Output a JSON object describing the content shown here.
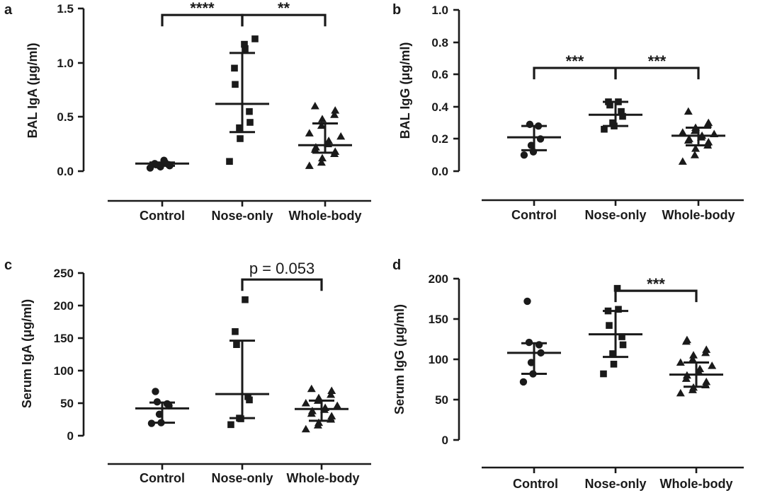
{
  "chart_data": [
    {
      "panel": "a",
      "type": "scatter",
      "ylabel": "BAL IgA (μg/ml)",
      "ylim": [
        0,
        1.5
      ],
      "yticks": [
        0.0,
        0.5,
        1.0,
        1.5
      ],
      "ytick_labels": [
        "0.0",
        "0.5",
        "1.0",
        "1.5"
      ],
      "categories": [
        "Control",
        "Nose-only",
        "Whole-body"
      ],
      "groups": [
        {
          "category": "Control",
          "marker": "circle",
          "values": [
            0.03,
            0.04,
            0.05,
            0.05,
            0.06,
            0.06,
            0.07,
            0.08,
            0.1
          ],
          "mean": 0.07,
          "sd_low": 0.05,
          "sd_high": 0.08
        },
        {
          "category": "Nose-only",
          "marker": "square",
          "values": [
            0.09,
            0.3,
            0.4,
            0.45,
            0.55,
            0.8,
            0.95,
            1.13,
            1.17,
            1.22
          ],
          "mean": 0.62,
          "sd_low": 0.36,
          "sd_high": 1.09
        },
        {
          "category": "Whole-body",
          "marker": "triangle",
          "values": [
            0.05,
            0.08,
            0.12,
            0.16,
            0.18,
            0.2,
            0.22,
            0.25,
            0.28,
            0.32,
            0.35,
            0.42,
            0.48,
            0.52,
            0.56,
            0.6
          ],
          "mean": 0.24,
          "sd_low": 0.17,
          "sd_high": 0.44
        }
      ],
      "comparisons": [
        {
          "from": "Control",
          "to": "Nose-only",
          "label": "****",
          "y": 1.44
        },
        {
          "from": "Nose-only",
          "to": "Whole-body",
          "label": "**",
          "y": 1.44
        }
      ]
    },
    {
      "panel": "b",
      "type": "scatter",
      "ylabel": "BAL IgG (μg/ml)",
      "ylim": [
        0,
        1.0
      ],
      "yticks": [
        0.0,
        0.2,
        0.4,
        0.6,
        0.8,
        1.0
      ],
      "ytick_labels": [
        "0.0",
        "0.2",
        "0.4",
        "0.6",
        "0.8",
        "1.0"
      ],
      "categories": [
        "Control",
        "Nose-only",
        "Whole-body"
      ],
      "groups": [
        {
          "category": "Control",
          "marker": "circle",
          "values": [
            0.1,
            0.12,
            0.16,
            0.2,
            0.28,
            0.29
          ],
          "mean": 0.21,
          "sd_low": 0.13,
          "sd_high": 0.28
        },
        {
          "category": "Nose-only",
          "marker": "square",
          "values": [
            0.26,
            0.28,
            0.3,
            0.34,
            0.37,
            0.41,
            0.43,
            0.43
          ],
          "mean": 0.35,
          "sd_low": 0.28,
          "sd_high": 0.43
        },
        {
          "category": "Whole-body",
          "marker": "triangle",
          "values": [
            0.06,
            0.1,
            0.14,
            0.16,
            0.18,
            0.19,
            0.2,
            0.21,
            0.22,
            0.23,
            0.24,
            0.25,
            0.27,
            0.29,
            0.3,
            0.37
          ],
          "mean": 0.22,
          "sd_low": 0.16,
          "sd_high": 0.27
        }
      ],
      "comparisons": [
        {
          "from": "Control",
          "to": "Nose-only",
          "label": "***",
          "y": 0.64
        },
        {
          "from": "Nose-only",
          "to": "Whole-body",
          "label": "***",
          "y": 0.64
        }
      ]
    },
    {
      "panel": "c",
      "type": "scatter",
      "ylabel": "Serum IgA (μg/ml)",
      "ylim": [
        0,
        250
      ],
      "yticks": [
        0,
        50,
        100,
        150,
        200,
        250
      ],
      "ytick_labels": [
        "0",
        "50",
        "100",
        "150",
        "200",
        "250"
      ],
      "categories": [
        "Control",
        "Nose-only",
        "Whole-body"
      ],
      "groups": [
        {
          "category": "Control",
          "marker": "circle",
          "values": [
            19,
            20,
            33,
            46,
            49,
            52,
            68
          ],
          "mean": 42,
          "sd_low": 20,
          "sd_high": 51
        },
        {
          "category": "Nose-only",
          "marker": "square",
          "values": [
            17,
            26,
            27,
            55,
            60,
            140,
            160,
            209
          ],
          "mean": 64,
          "sd_low": 27,
          "sd_high": 146
        },
        {
          "category": "Whole-body",
          "marker": "triangle",
          "values": [
            10,
            16,
            20,
            25,
            30,
            34,
            38,
            40,
            43,
            46,
            50,
            54,
            58,
            63,
            69,
            72
          ],
          "mean": 41,
          "sd_low": 23,
          "sd_high": 54
        }
      ],
      "comparisons": [
        {
          "from": "Nose-only",
          "to": "Whole-body",
          "label": "p = 0.053",
          "y": 240
        }
      ]
    },
    {
      "panel": "d",
      "type": "scatter",
      "ylabel": "Serum IgG (μg/ml)",
      "ylim": [
        0,
        200
      ],
      "yticks": [
        0,
        50,
        100,
        150,
        200
      ],
      "ytick_labels": [
        "0",
        "50",
        "100",
        "150",
        "200"
      ],
      "categories": [
        "Control",
        "Nose-only",
        "Whole-body"
      ],
      "groups": [
        {
          "category": "Control",
          "marker": "circle",
          "values": [
            72,
            82,
            96,
            108,
            118,
            121,
            172
          ],
          "mean": 108,
          "sd_low": 82,
          "sd_high": 120
        },
        {
          "category": "Nose-only",
          "marker": "square",
          "values": [
            82,
            94,
            107,
            118,
            128,
            142,
            160,
            162,
            188
          ],
          "mean": 131,
          "sd_low": 103,
          "sd_high": 160
        },
        {
          "category": "Whole-body",
          "marker": "triangle",
          "values": [
            58,
            62,
            65,
            68,
            72,
            76,
            80,
            84,
            88,
            92,
            96,
            100,
            105,
            108,
            112,
            122,
            124
          ],
          "mean": 81,
          "sd_low": 66,
          "sd_high": 96
        }
      ],
      "comparisons": [
        {
          "from": "Nose-only",
          "to": "Whole-body",
          "label": "***",
          "y": 185
        }
      ]
    }
  ]
}
